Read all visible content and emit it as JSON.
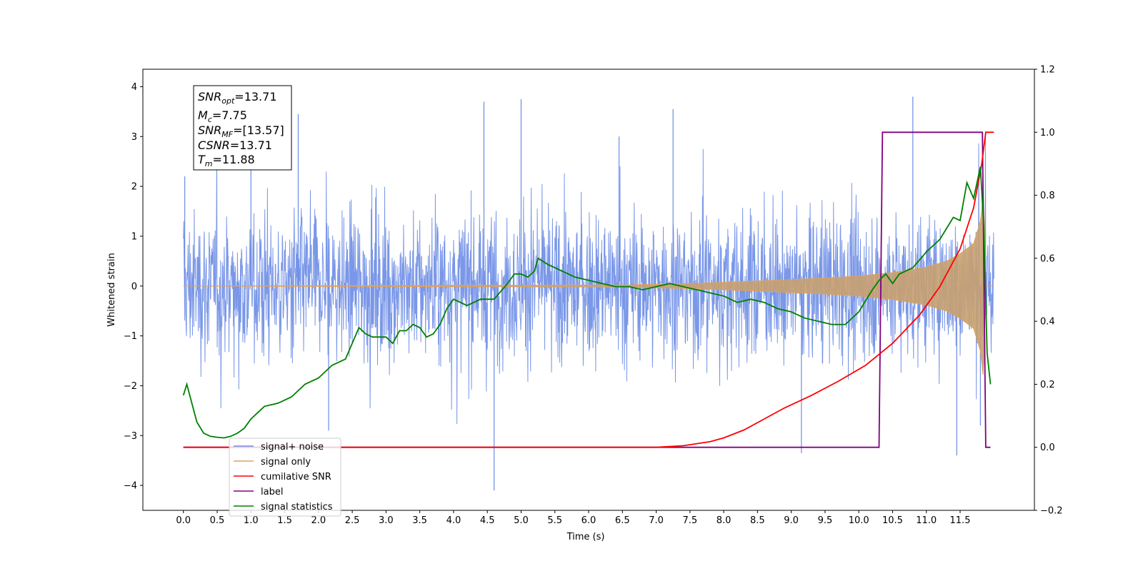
{
  "chart_data": {
    "type": "line",
    "title": "",
    "xlabel": "Time (s)",
    "ylabel_left": "Whitened strain",
    "ylabel_right": "",
    "xlim": [
      -0.6,
      12.6
    ],
    "ylim_left": [
      -4.5,
      4.35
    ],
    "ylim_right": [
      -0.2,
      1.2
    ],
    "x_ticks": [
      "0.0",
      "0.5",
      "1.0",
      "1.5",
      "2.0",
      "2.5",
      "3.0",
      "3.5",
      "4.0",
      "4.5",
      "5.0",
      "5.5",
      "6.0",
      "6.5",
      "7.0",
      "7.5",
      "8.0",
      "8.5",
      "9.0",
      "9.5",
      "10.0",
      "10.5",
      "11.0",
      "11.5"
    ],
    "y_ticks_left": [
      "4",
      "3",
      "2",
      "1",
      "0",
      "−1",
      "−2",
      "−3",
      "−4"
    ],
    "y_ticks_right": [
      "1.2",
      "1.0",
      "0.8",
      "0.6",
      "0.4",
      "0.2",
      "0.0",
      "−0.2"
    ],
    "grid": false,
    "legend_position": "lower-left",
    "colors": {
      "noise": "#6b8ce6",
      "signal": "#e0a25a",
      "cumulative_snr": "#ff0000",
      "label": "#800080",
      "statistics": "#008000"
    },
    "info_box": {
      "snr_opt": "=13.71",
      "mc": "=7.75",
      "snr_mf": "=[13.57]",
      "csnr": "=13.71",
      "tm": "=11.88"
    },
    "series": [
      {
        "name": "signal+ noise",
        "axis": "left",
        "description_values": "noisy band approx ±1.5 with spikes up to ±3.8 over t in [0, 12.0]",
        "envelope_typical": 1.5,
        "spikes": [
          [
            0.02,
            2.2
          ],
          [
            1.7,
            3.45
          ],
          [
            4.45,
            3.7
          ],
          [
            5.0,
            3.75
          ],
          [
            6.45,
            3.0
          ],
          [
            7.25,
            3.55
          ],
          [
            10.8,
            3.8
          ],
          [
            11.8,
            -2.8
          ],
          [
            4.6,
            -4.1
          ],
          [
            2.15,
            -2.9
          ],
          [
            9.15,
            -3.35
          ],
          [
            11.45,
            -3.4
          ],
          [
            1.0,
            2.75
          ]
        ]
      },
      {
        "name": "signal only",
        "axis": "left",
        "chirp_envelope": [
          [
            0.0,
            0.0
          ],
          [
            6.5,
            0.02
          ],
          [
            7.5,
            0.05
          ],
          [
            8.5,
            0.1
          ],
          [
            9.5,
            0.16
          ],
          [
            10.0,
            0.2
          ],
          [
            10.5,
            0.27
          ],
          [
            11.0,
            0.38
          ],
          [
            11.3,
            0.5
          ],
          [
            11.5,
            0.65
          ],
          [
            11.7,
            0.85
          ],
          [
            11.8,
            1.3
          ],
          [
            11.85,
            1.9
          ],
          [
            11.88,
            0.0
          ],
          [
            12.0,
            0.0
          ]
        ]
      },
      {
        "name": "cumilative SNR",
        "axis": "right",
        "x": [
          0.0,
          7.0,
          7.4,
          7.8,
          8.0,
          8.3,
          8.6,
          8.9,
          9.3,
          9.7,
          10.1,
          10.5,
          10.9,
          11.2,
          11.5,
          11.7,
          11.82,
          11.88,
          12.0
        ],
        "y": [
          0.0,
          0.0,
          0.005,
          0.018,
          0.03,
          0.055,
          0.09,
          0.125,
          0.165,
          0.21,
          0.26,
          0.33,
          0.42,
          0.51,
          0.63,
          0.76,
          0.9,
          1.0,
          1.0
        ]
      },
      {
        "name": "label",
        "axis": "right",
        "x": [
          0.0,
          10.3,
          10.35,
          11.83,
          11.88,
          11.95
        ],
        "y": [
          0.0,
          0.0,
          1.0,
          1.0,
          0.0,
          0.0
        ]
      },
      {
        "name": "signal statistics",
        "axis": "right",
        "x": [
          0.0,
          0.05,
          0.1,
          0.2,
          0.3,
          0.4,
          0.5,
          0.6,
          0.7,
          0.8,
          0.9,
          1.0,
          1.1,
          1.2,
          1.4,
          1.6,
          1.8,
          2.0,
          2.2,
          2.4,
          2.6,
          2.7,
          2.8,
          2.9,
          3.0,
          3.1,
          3.2,
          3.3,
          3.4,
          3.5,
          3.6,
          3.7,
          3.8,
          3.9,
          4.0,
          4.2,
          4.4,
          4.6,
          4.8,
          4.9,
          5.0,
          5.1,
          5.2,
          5.25,
          5.4,
          5.6,
          5.8,
          6.0,
          6.2,
          6.4,
          6.6,
          6.8,
          7.0,
          7.2,
          7.4,
          7.6,
          7.8,
          8.0,
          8.2,
          8.4,
          8.6,
          8.8,
          9.0,
          9.2,
          9.4,
          9.6,
          9.8,
          10.0,
          10.2,
          10.3,
          10.4,
          10.5,
          10.6,
          10.8,
          11.0,
          11.2,
          11.4,
          11.5,
          11.6,
          11.7,
          11.8,
          11.85,
          11.9,
          11.95
        ],
        "y": [
          0.165,
          0.2,
          0.16,
          0.08,
          0.045,
          0.035,
          0.032,
          0.03,
          0.035,
          0.045,
          0.06,
          0.09,
          0.11,
          0.13,
          0.14,
          0.16,
          0.2,
          0.22,
          0.26,
          0.28,
          0.38,
          0.36,
          0.35,
          0.35,
          0.35,
          0.33,
          0.37,
          0.37,
          0.39,
          0.38,
          0.35,
          0.36,
          0.39,
          0.44,
          0.47,
          0.45,
          0.47,
          0.47,
          0.52,
          0.55,
          0.55,
          0.54,
          0.56,
          0.6,
          0.58,
          0.56,
          0.54,
          0.53,
          0.52,
          0.51,
          0.51,
          0.5,
          0.51,
          0.52,
          0.51,
          0.5,
          0.49,
          0.48,
          0.46,
          0.47,
          0.46,
          0.44,
          0.43,
          0.41,
          0.4,
          0.39,
          0.39,
          0.43,
          0.5,
          0.53,
          0.55,
          0.52,
          0.55,
          0.57,
          0.62,
          0.66,
          0.73,
          0.72,
          0.84,
          0.79,
          0.89,
          0.7,
          0.3,
          0.2
        ]
      }
    ]
  }
}
